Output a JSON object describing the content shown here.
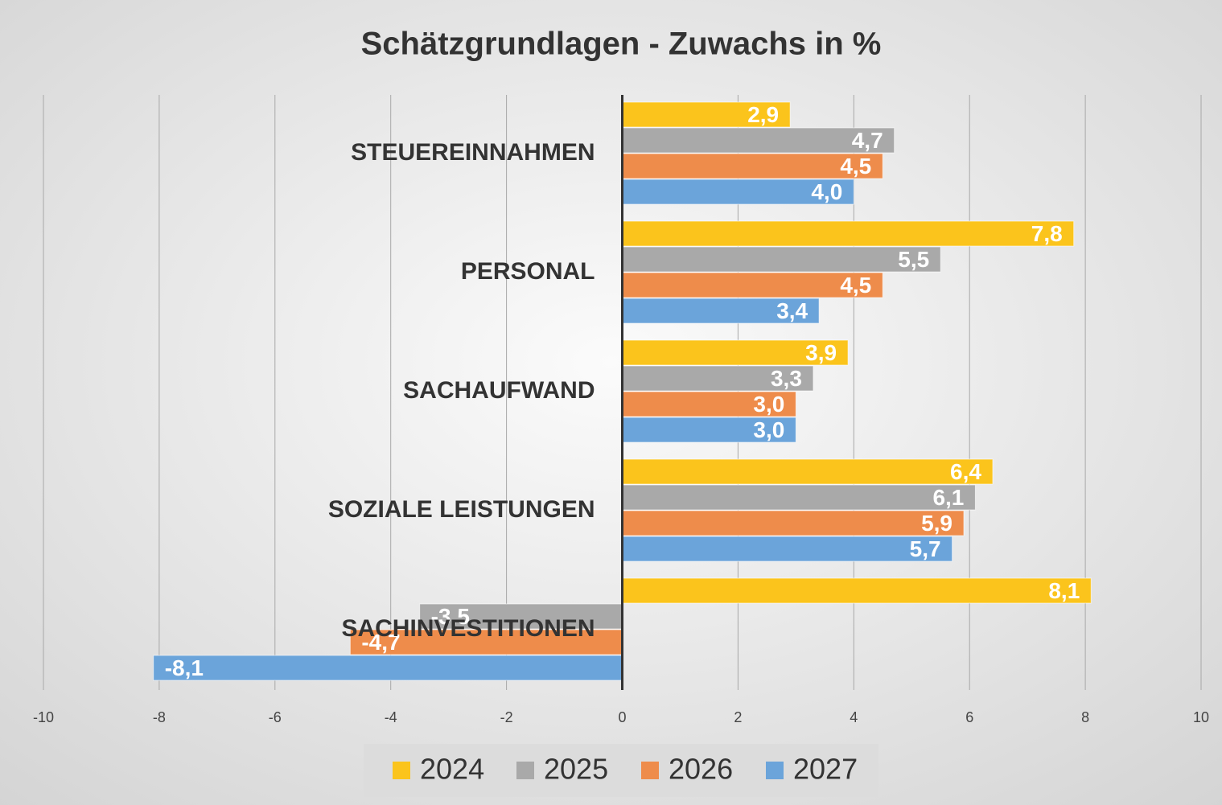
{
  "chart_data": {
    "type": "barh",
    "title": "Schätzgrundlagen - Zuwachs in %",
    "categories": [
      "STEUEREINNAHMEN",
      "PERSONAL",
      "SACHAUFWAND",
      "SOZIALE LEISTUNGEN",
      "SACHINVESTITIONEN"
    ],
    "series": [
      {
        "name": "2024",
        "color": "#fbc41c",
        "values": [
          2.9,
          7.8,
          3.9,
          6.4,
          8.1
        ],
        "value_labels": [
          "2,9",
          "7,8",
          "3,9",
          "6,4",
          "8,1"
        ]
      },
      {
        "name": "2025",
        "color": "#a9a9a9",
        "values": [
          4.7,
          5.5,
          3.3,
          6.1,
          -3.5
        ],
        "value_labels": [
          "4,7",
          "5,5",
          "3,3",
          "6,1",
          "-3,5"
        ]
      },
      {
        "name": "2026",
        "color": "#ee8c4b",
        "values": [
          4.5,
          4.5,
          3.0,
          5.9,
          -4.7
        ],
        "value_labels": [
          "4,5",
          "4,5",
          "3,0",
          "5,9",
          "-4,7"
        ]
      },
      {
        "name": "2027",
        "color": "#6ba4da",
        "values": [
          4.0,
          3.4,
          3.0,
          5.7,
          -8.1
        ],
        "value_labels": [
          "4,0",
          "3,4",
          "3,0",
          "5,7",
          "-8,1"
        ]
      }
    ],
    "xlim": [
      -10,
      10
    ],
    "xticks": [
      -10,
      -8,
      -6,
      -4,
      -2,
      0,
      2,
      4,
      6,
      8,
      10
    ],
    "grid": true,
    "legend": "bottom"
  }
}
